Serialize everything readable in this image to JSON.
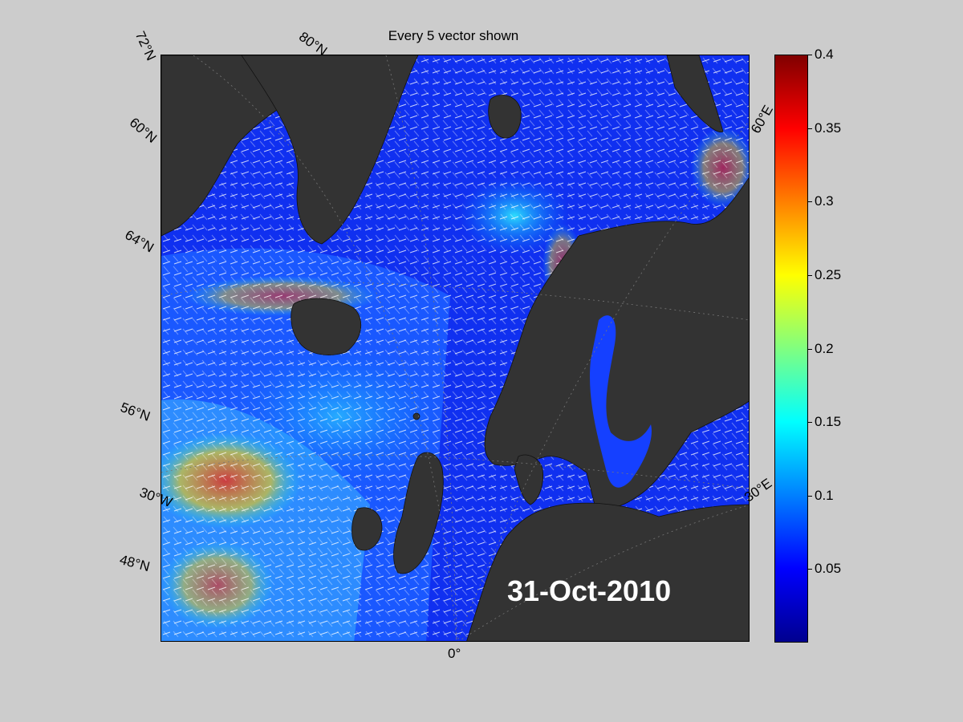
{
  "title": "Every 5 vector shown",
  "date": "31-Oct-2010",
  "map": {
    "projection": "polar stereographic",
    "land_color": "#333333",
    "coast_color": "#000000",
    "vector_color": "#ffffff",
    "grid_labels": {
      "lat_72": "72°N",
      "lat_80": "80°N",
      "lat_60": "60°N",
      "lat_64": "64°N",
      "lat_56": "56°N",
      "lat_48": "48°N",
      "lon_30w": "30°W",
      "lon_0": "0°",
      "lon_30e": "30°E",
      "lon_60e": "60°E"
    }
  },
  "colorbar": {
    "colormap": "jet",
    "min": 0,
    "max": 0.4,
    "ticks": [
      "0.4",
      "0.35",
      "0.3",
      "0.25",
      "0.2",
      "0.15",
      "0.1",
      "0.05"
    ]
  }
}
